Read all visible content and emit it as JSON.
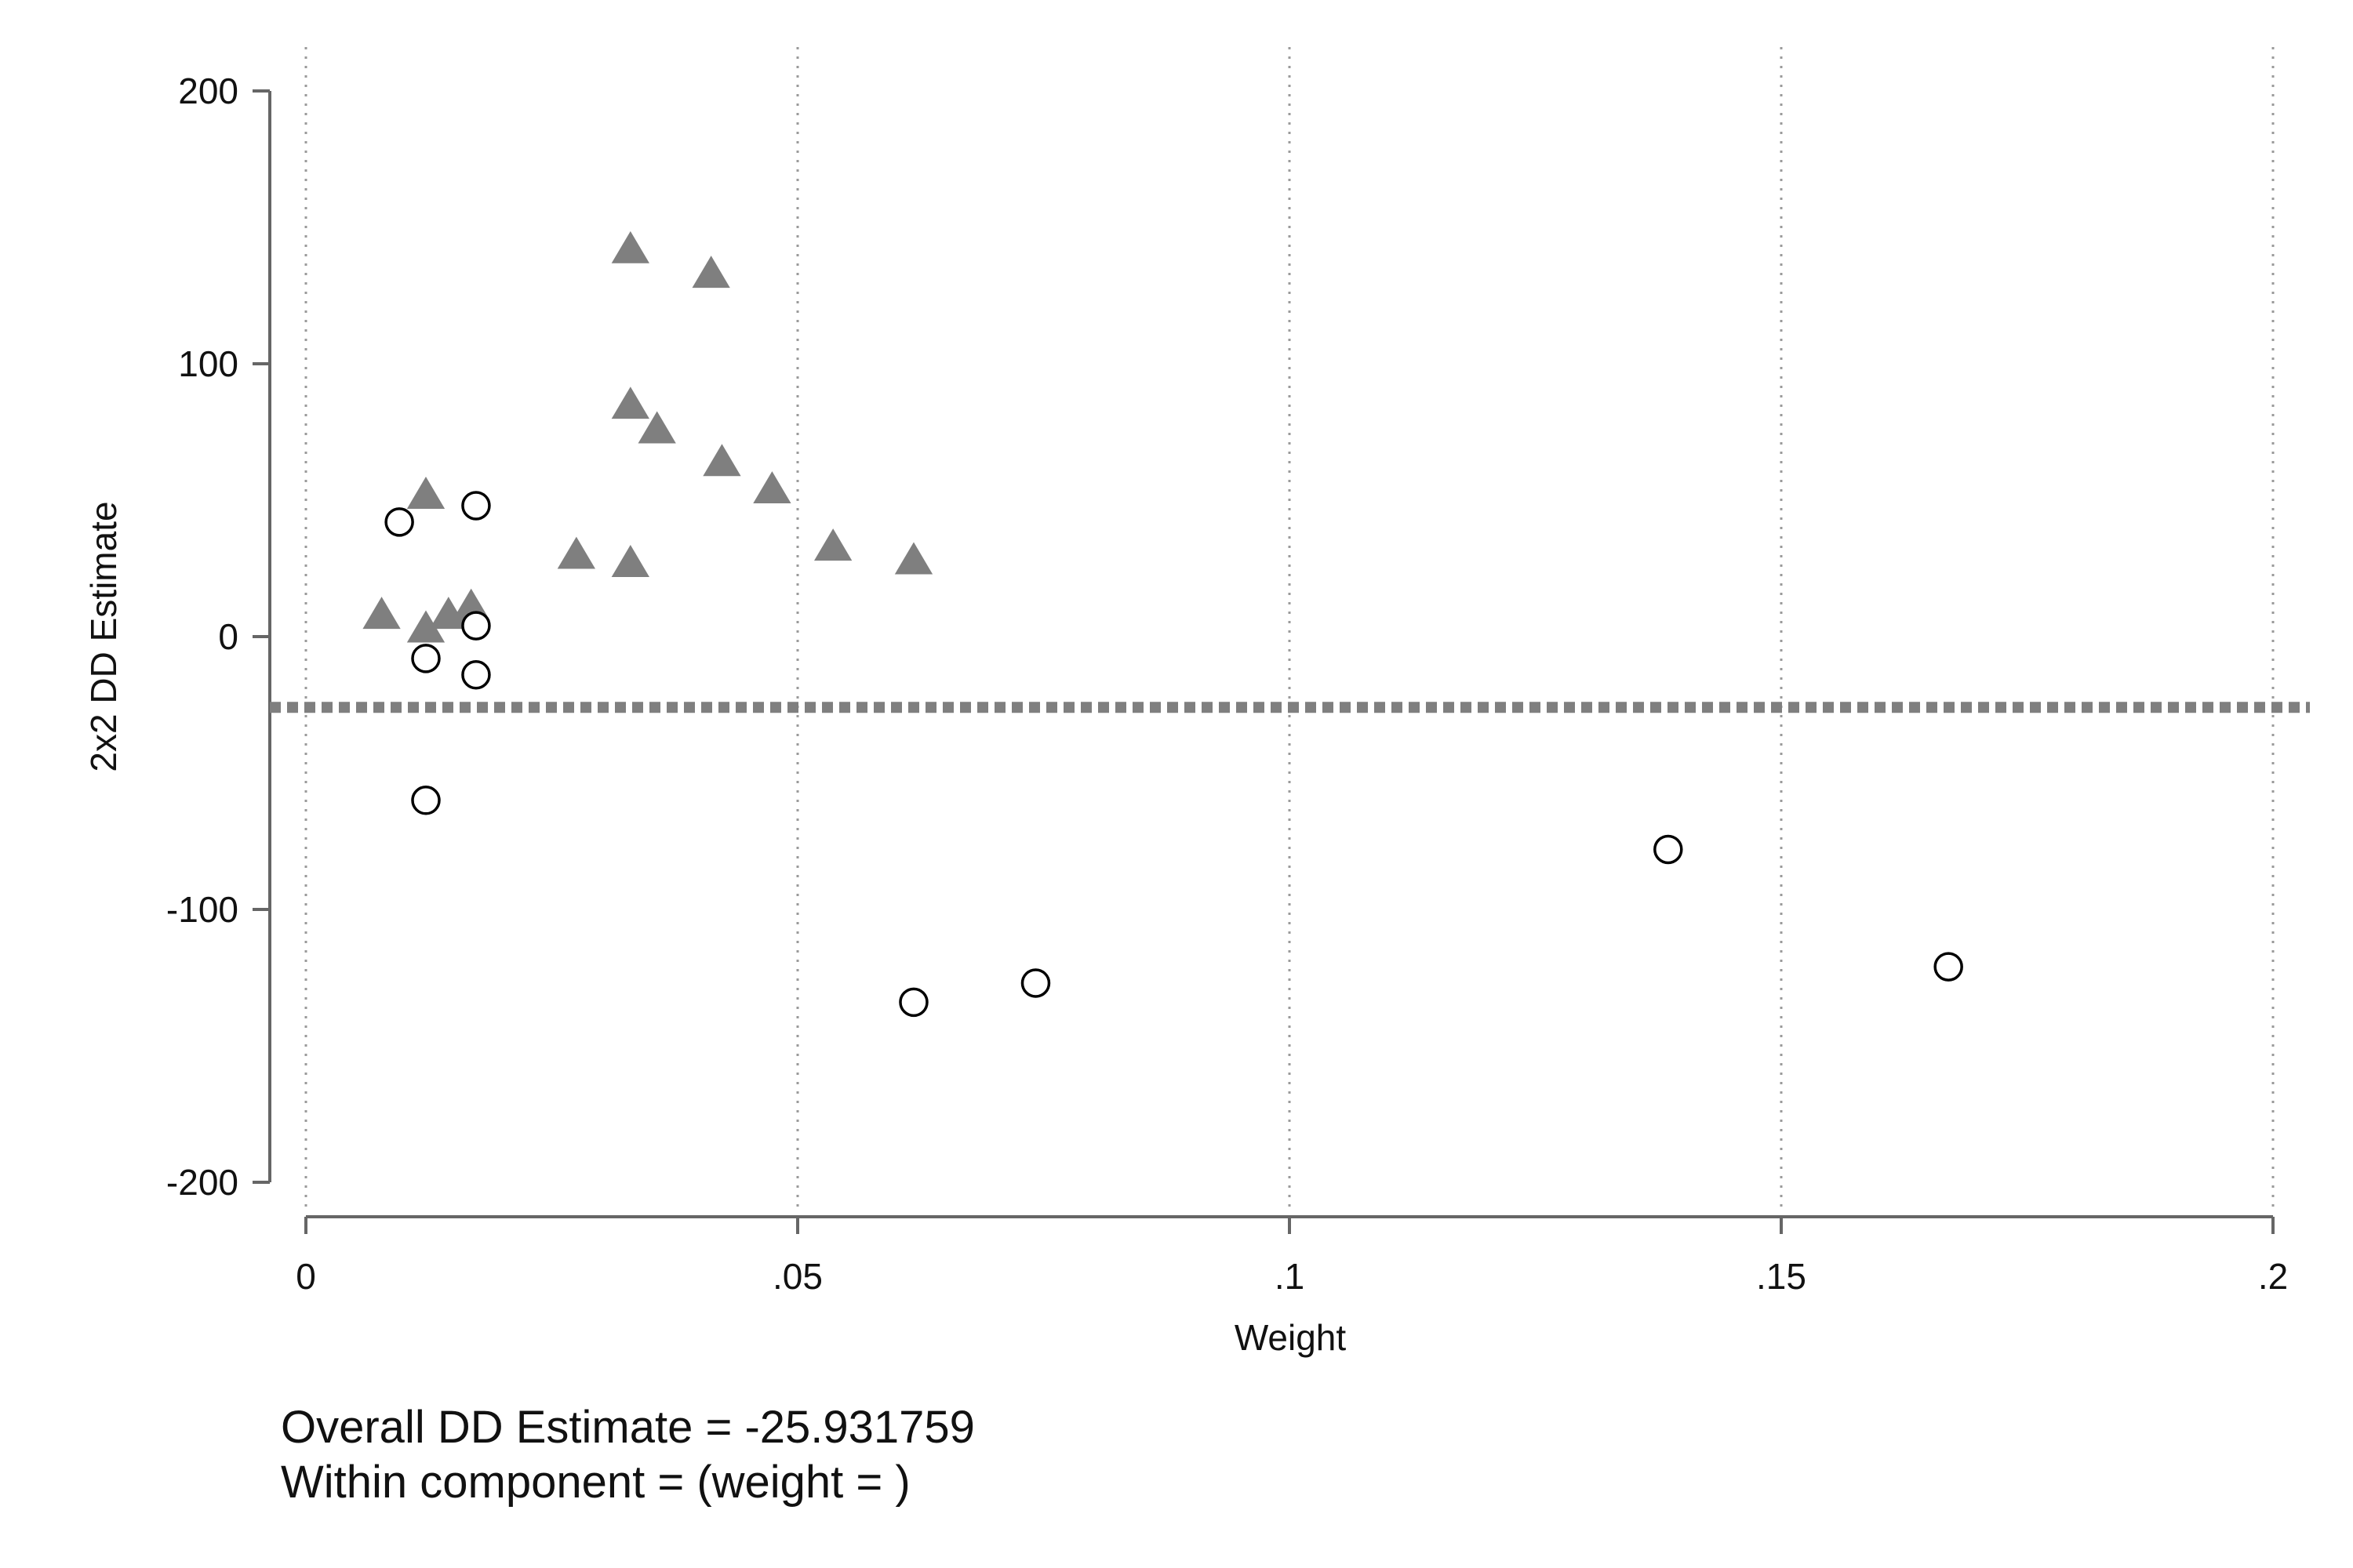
{
  "chart_data": {
    "type": "scatter",
    "title": "",
    "xlabel": "Weight",
    "ylabel": "2x2 DD Estimate",
    "xlim": [
      0,
      0.2
    ],
    "ylim": [
      -200,
      200
    ],
    "x_ticks": [
      {
        "value": 0,
        "label": "0"
      },
      {
        "value": 0.05,
        "label": ".05"
      },
      {
        "value": 0.1,
        "label": ".1"
      },
      {
        "value": 0.15,
        "label": ".15"
      },
      {
        "value": 0.2,
        "label": ".2"
      }
    ],
    "y_ticks": [
      {
        "value": 200,
        "label": "200"
      },
      {
        "value": 100,
        "label": "100"
      },
      {
        "value": 0,
        "label": "0"
      },
      {
        "value": -100,
        "label": "-100"
      },
      {
        "value": -200,
        "label": "-200"
      }
    ],
    "grid": {
      "vertical": true,
      "horizontal": false,
      "style": "dotted"
    },
    "legend": "none",
    "reference_line": {
      "y": -25.931759,
      "style": "dashed",
      "color": "#7f7f7f"
    },
    "series": [
      {
        "marker": "triangle",
        "color": "#7f7f7f",
        "points": [
          {
            "x": 0.0077,
            "y": 8
          },
          {
            "x": 0.0122,
            "y": 52
          },
          {
            "x": 0.0122,
            "y": 3
          },
          {
            "x": 0.0145,
            "y": 8
          },
          {
            "x": 0.0168,
            "y": 11
          },
          {
            "x": 0.0275,
            "y": 30
          },
          {
            "x": 0.033,
            "y": 142
          },
          {
            "x": 0.033,
            "y": 85
          },
          {
            "x": 0.033,
            "y": 27
          },
          {
            "x": 0.0357,
            "y": 76
          },
          {
            "x": 0.0412,
            "y": 133
          },
          {
            "x": 0.0423,
            "y": 64
          },
          {
            "x": 0.0474,
            "y": 54
          },
          {
            "x": 0.0536,
            "y": 33
          },
          {
            "x": 0.0618,
            "y": 28
          }
        ]
      },
      {
        "marker": "circle",
        "color": "#000000",
        "points": [
          {
            "x": 0.0095,
            "y": 42
          },
          {
            "x": 0.0122,
            "y": -8
          },
          {
            "x": 0.0122,
            "y": -60
          },
          {
            "x": 0.0173,
            "y": 48
          },
          {
            "x": 0.0173,
            "y": 4
          },
          {
            "x": 0.0173,
            "y": -14
          },
          {
            "x": 0.0618,
            "y": -134
          },
          {
            "x": 0.0742,
            "y": -127
          },
          {
            "x": 0.1385,
            "y": -78
          },
          {
            "x": 0.167,
            "y": -121
          }
        ]
      }
    ]
  },
  "notes": {
    "line1": "Overall DD Estimate = -25.931759",
    "line2": "Within component =  (weight = )"
  }
}
